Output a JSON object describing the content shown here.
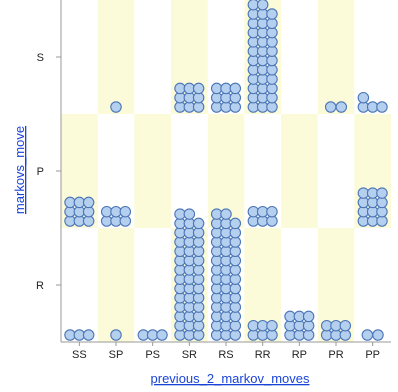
{
  "chart_data": {
    "type": "scatter",
    "subtype": "dot-stack-categorical",
    "xlabel": "previous_2_markov_moves",
    "ylabel": "markovs_move",
    "x_categories": [
      "SS",
      "SP",
      "PS",
      "SR",
      "RS",
      "RR",
      "RP",
      "PR",
      "PP"
    ],
    "y_categories": [
      "R",
      "P",
      "S"
    ],
    "counts": {
      "S": [
        0,
        1,
        0,
        9,
        9,
        35,
        0,
        2,
        4
      ],
      "P": [
        9,
        6,
        0,
        0,
        0,
        6,
        0,
        0,
        12
      ],
      "R": [
        3,
        1,
        3,
        41,
        41,
        6,
        9,
        6,
        2
      ]
    },
    "grid": false,
    "colors": {
      "band_highlight": "#fbfbd9",
      "point_fill": "#b5cfef",
      "point_stroke": "#4a75b6",
      "axis_title": "#1a44d6"
    }
  }
}
